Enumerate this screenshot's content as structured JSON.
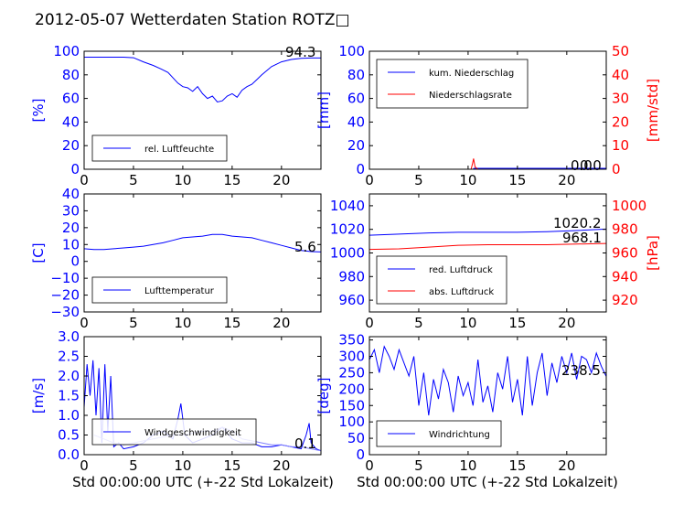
{
  "title": "2012-05-07 Wetterdaten Station ROTZ□",
  "xlabel": "Std 00:00:00 UTC (+-22 Std Lokalzeit)",
  "colors": {
    "blue": "#0000ff",
    "red": "#ff0000",
    "lightblue": "#8080ff",
    "black": "#000000"
  },
  "chart_data": [
    {
      "id": "humidity",
      "type": "line",
      "ylabel": "[%]",
      "xlim": [
        0,
        24
      ],
      "ylim": [
        0,
        100
      ],
      "xticks": [
        "0",
        "5",
        "10",
        "15",
        "20"
      ],
      "yticks": [
        "0",
        "20",
        "40",
        "60",
        "80",
        "100"
      ],
      "legend": {
        "placement": "lower-left",
        "entries": [
          "rel. Luftfeuchte"
        ]
      },
      "annotation": "94.3",
      "series": [
        {
          "name": "rel. Luftfeuchte",
          "color": "#0000ff",
          "x": [
            0,
            2,
            4,
            5,
            6,
            7,
            7.8,
            8.5,
            9.5,
            10,
            10.5,
            11,
            11.5,
            12,
            12.5,
            13,
            13.5,
            14,
            14.5,
            15,
            15.5,
            16,
            16.5,
            17,
            17.5,
            18,
            19,
            20,
            21,
            22,
            23,
            24
          ],
          "y": [
            95,
            95,
            95,
            94.5,
            91,
            88,
            85,
            82,
            73,
            70,
            69,
            66,
            70,
            64,
            60,
            62,
            57,
            58,
            62,
            64,
            61,
            67,
            70,
            72,
            76,
            80,
            87,
            91,
            93,
            94,
            94.3,
            94.3
          ]
        }
      ]
    },
    {
      "id": "precip",
      "type": "line",
      "ylabel": "[mm]",
      "y2label": "[mm/std]",
      "xlim": [
        0,
        24
      ],
      "ylim": [
        0,
        100
      ],
      "y2lim": [
        0,
        50
      ],
      "xticks": [
        "0",
        "5",
        "10",
        "15",
        "20"
      ],
      "yticks": [
        "0",
        "20",
        "40",
        "60",
        "80",
        "100"
      ],
      "y2ticks": [
        "0",
        "10",
        "20",
        "30",
        "40",
        "50"
      ],
      "legend": {
        "placement": "upper-left",
        "entries": [
          "kum. Niederschlag",
          "Niederschlagsrate"
        ]
      },
      "annotation": "0.0",
      "annotation2": "0.0",
      "series": [
        {
          "name": "kum. Niederschlag",
          "color": "#0000ff",
          "axis": "left",
          "x": [
            0,
            10.5,
            10.6,
            24
          ],
          "y": [
            0,
            0,
            0.8,
            0.8
          ]
        },
        {
          "name": "Niederschlagsrate",
          "color": "#ff0000",
          "axis": "right",
          "x": [
            0,
            10.3,
            10.45,
            10.55,
            10.7,
            11,
            24
          ],
          "y": [
            0,
            0,
            2.5,
            4.5,
            1,
            0,
            0
          ]
        }
      ]
    },
    {
      "id": "temperature",
      "type": "line",
      "ylabel": "[C]",
      "xlim": [
        0,
        24
      ],
      "ylim": [
        -30,
        40
      ],
      "xticks": [
        "0",
        "5",
        "10",
        "15",
        "20"
      ],
      "yticks": [
        "−30",
        "−20",
        "−10",
        "0",
        "10",
        "20",
        "30",
        "40"
      ],
      "legend": {
        "placement": "lower-left",
        "entries": [
          "Lufttemperatur"
        ]
      },
      "annotation": "5.6",
      "series": [
        {
          "name": "Lufttemperatur",
          "color": "#0000ff",
          "x": [
            0,
            1,
            2,
            3,
            4,
            5,
            6,
            7,
            8,
            9,
            10,
            11,
            12,
            13,
            14,
            15,
            16,
            17,
            18,
            19,
            20,
            21,
            22,
            23,
            24
          ],
          "y": [
            7.5,
            7,
            7,
            7.5,
            8,
            8.5,
            9,
            10,
            11,
            12.5,
            14,
            14.5,
            15,
            16,
            16,
            15,
            14.5,
            14,
            12.5,
            11,
            9.5,
            8,
            6.5,
            5.8,
            5.6
          ]
        }
      ]
    },
    {
      "id": "pressure",
      "type": "line",
      "ylabel": "",
      "y2label": "[hPa]",
      "xlim": [
        0,
        24
      ],
      "ylim": [
        950,
        1050
      ],
      "y2lim": [
        910,
        1010
      ],
      "xticks": [
        "0",
        "5",
        "10",
        "15",
        "20"
      ],
      "yticks": [
        "960",
        "980",
        "1000",
        "1020",
        "1040"
      ],
      "y2ticks": [
        "920",
        "940",
        "960",
        "980",
        "1000"
      ],
      "legend": {
        "placement": "lower-left",
        "entries": [
          "red. Luftdruck",
          "abs. Luftdruck"
        ]
      },
      "annotation": "1020.2",
      "annotation2": "968.1",
      "series": [
        {
          "name": "red. Luftdruck",
          "color": "#0000ff",
          "axis": "left",
          "x": [
            0,
            3,
            6,
            9,
            12,
            15,
            18,
            21,
            24
          ],
          "y": [
            1015,
            1016,
            1017,
            1017.5,
            1017.5,
            1017.5,
            1018,
            1019,
            1020.2
          ]
        },
        {
          "name": "abs. Luftdruck",
          "color": "#ff0000",
          "axis": "right",
          "x": [
            0,
            3,
            6,
            9,
            12,
            15,
            18,
            21,
            24
          ],
          "y": [
            963,
            963.5,
            965,
            966.5,
            967,
            967,
            967,
            967.5,
            968.1
          ]
        }
      ]
    },
    {
      "id": "wind-speed",
      "type": "line",
      "ylabel": "[m/s]",
      "xlim": [
        0,
        24
      ],
      "ylim": [
        0,
        3.0
      ],
      "xticks": [
        "0",
        "5",
        "10",
        "15",
        "20"
      ],
      "yticks": [
        "0.0",
        "0.5",
        "1.0",
        "1.5",
        "2.0",
        "2.5",
        "3.0"
      ],
      "legend": {
        "placement": "lower-left",
        "entries": [
          "Windgeschwindigkeit"
        ]
      },
      "annotation": "0.1",
      "series": [
        {
          "name": "Windgeschwindigkeit",
          "color": "#0000ff",
          "x": [
            0,
            0.3,
            0.6,
            0.9,
            1.2,
            1.5,
            1.8,
            2.1,
            2.4,
            2.7,
            3,
            3.5,
            4,
            5,
            6,
            7,
            8,
            9,
            9.5,
            9.8,
            10.2,
            11,
            12,
            13,
            14,
            15,
            16,
            17,
            18,
            19,
            20,
            21,
            22,
            22.5,
            22.8,
            23,
            23.5,
            24
          ],
          "y": [
            1.2,
            2.3,
            1.5,
            2.4,
            1.0,
            2.2,
            0.3,
            2.3,
            0.6,
            2.0,
            0.2,
            0.3,
            0.15,
            0.2,
            0.3,
            0.5,
            0.6,
            0.4,
            0.9,
            1.3,
            0.5,
            0.3,
            0.4,
            0.5,
            0.7,
            0.4,
            0.3,
            0.3,
            0.2,
            0.2,
            0.25,
            0.2,
            0.15,
            0.5,
            0.8,
            0.3,
            0.15,
            0.1
          ]
        },
        {
          "name": "",
          "color": "#8080ff",
          "x": [
            1,
            2,
            3,
            4,
            5,
            6,
            7,
            8,
            9,
            10,
            11,
            12,
            13,
            14,
            15,
            16,
            17,
            18,
            19,
            20,
            21,
            22,
            23,
            24
          ],
          "y": [
            0.5,
            0.4,
            0.3,
            0.25,
            0.3,
            0.35,
            0.4,
            0.45,
            0.5,
            0.5,
            0.55,
            0.6,
            0.6,
            0.7,
            0.6,
            0.4,
            0.35,
            0.3,
            0.25,
            0.25,
            0.2,
            0.2,
            0.15,
            0.1
          ]
        }
      ]
    },
    {
      "id": "wind-direction",
      "type": "line",
      "ylabel": "[deg]",
      "xlim": [
        0,
        24
      ],
      "ylim": [
        0,
        360
      ],
      "xticks": [
        "0",
        "5",
        "10",
        "15",
        "20"
      ],
      "yticks": [
        "0",
        "50",
        "100",
        "150",
        "200",
        "250",
        "300",
        "350"
      ],
      "legend": {
        "placement": "lower-left",
        "entries": [
          "Windrichtung"
        ]
      },
      "annotation": "238.5",
      "series": [
        {
          "name": "Windrichtung",
          "color": "#0000ff",
          "x": [
            0,
            0.5,
            1,
            1.5,
            2,
            2.5,
            3,
            3.5,
            4,
            4.5,
            5,
            5.5,
            6,
            6.5,
            7,
            7.5,
            8,
            8.5,
            9,
            9.5,
            10,
            10.5,
            11,
            11.5,
            12,
            12.5,
            13,
            13.5,
            14,
            14.5,
            15,
            15.5,
            16,
            16.5,
            17,
            17.5,
            18,
            18.5,
            19,
            19.5,
            20,
            20.5,
            21,
            21.5,
            22,
            22.5,
            23,
            23.5,
            24
          ],
          "y": [
            290,
            320,
            250,
            330,
            300,
            260,
            320,
            280,
            240,
            300,
            150,
            250,
            120,
            230,
            170,
            260,
            220,
            130,
            240,
            180,
            220,
            150,
            290,
            160,
            210,
            130,
            250,
            200,
            300,
            160,
            230,
            120,
            300,
            150,
            250,
            310,
            180,
            280,
            220,
            300,
            250,
            310,
            230,
            300,
            290,
            250,
            310,
            270,
            238.5
          ]
        }
      ]
    }
  ]
}
